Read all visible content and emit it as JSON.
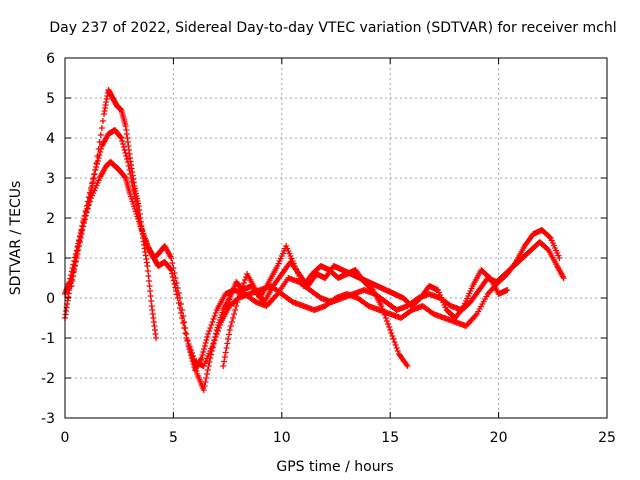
{
  "chart_data": {
    "type": "scatter",
    "title": "Day 237 of 2022, Sidereal Day-to-day VTEC variation (SDTVAR) for receiver mchl",
    "xlabel": "GPS time / hours",
    "ylabel": "SDTVAR / TECUs",
    "xlim": [
      0,
      25
    ],
    "ylim": [
      -3,
      6
    ],
    "xticks": [
      0,
      5,
      10,
      15,
      20,
      25
    ],
    "yticks": [
      -3,
      -2,
      -1,
      0,
      1,
      2,
      3,
      4,
      5,
      6
    ],
    "grid": true,
    "marker": "plus",
    "color": "#ff0000",
    "series": [
      {
        "name": "s1",
        "x": [
          0.0,
          0.2,
          0.5,
          0.8,
          1.2,
          1.6,
          1.9,
          2.1,
          2.3,
          2.5,
          2.8,
          3.0,
          3.3,
          3.6,
          3.9,
          4.1,
          4.3,
          4.6,
          4.9,
          5.3,
          5.7,
          6.0,
          6.3,
          6.6,
          7.0,
          7.4,
          7.8,
          8.3,
          8.8,
          9.3,
          9.8,
          10.3,
          10.8,
          11.3,
          11.8,
          12.3,
          12.8,
          13.3,
          13.8,
          14.3,
          14.8,
          15.3,
          15.8,
          16.3,
          16.8,
          17.3,
          17.8,
          18.3,
          18.7,
          19.1,
          19.5,
          19.9,
          20.3,
          20.7,
          21.1,
          21.5,
          21.9,
          22.3,
          22.7,
          23.0
        ],
        "y": [
          0.1,
          0.4,
          1.1,
          1.8,
          2.5,
          3.0,
          3.3,
          3.4,
          3.3,
          3.2,
          3.0,
          2.6,
          2.1,
          1.6,
          1.2,
          1.0,
          1.1,
          1.3,
          1.0,
          0.0,
          -1.2,
          -1.8,
          -1.5,
          -0.9,
          -0.3,
          0.1,
          0.2,
          0.1,
          -0.1,
          -0.2,
          0.1,
          0.5,
          0.4,
          0.2,
          0.0,
          -0.1,
          0.0,
          0.1,
          0.2,
          0.1,
          -0.1,
          -0.3,
          -0.2,
          0.0,
          0.1,
          0.0,
          -0.2,
          -0.3,
          -0.1,
          0.2,
          0.5,
          0.4,
          0.6,
          0.8,
          1.0,
          1.2,
          1.4,
          1.2,
          0.8,
          0.5
        ]
      },
      {
        "name": "s2",
        "x": [
          0.0,
          0.2,
          0.5,
          0.8,
          1.1,
          1.4,
          1.7,
          2.0,
          2.3,
          2.6,
          2.9,
          3.2,
          3.5,
          3.8,
          4.1,
          4.3,
          4.6,
          4.9,
          5.2,
          5.6,
          6.0,
          6.4,
          6.8,
          7.2,
          7.6,
          8.0,
          8.5,
          9.0,
          9.5,
          10.0,
          10.5,
          11.0,
          11.5,
          12.0,
          12.5,
          13.0,
          13.5,
          14.0,
          14.5,
          15.0,
          15.5,
          16.0,
          16.5,
          17.0,
          17.5,
          18.0,
          18.5,
          19.0,
          19.5,
          20.0,
          20.4,
          20.8,
          21.2,
          21.6,
          22.0,
          22.4,
          22.8
        ],
        "y": [
          -0.5,
          0.2,
          0.9,
          1.7,
          2.4,
          3.2,
          3.8,
          4.1,
          4.2,
          4.0,
          3.4,
          2.6,
          1.8,
          1.3,
          1.0,
          0.8,
          0.9,
          0.7,
          0.0,
          -1.0,
          -1.6,
          -1.7,
          -1.2,
          -0.6,
          -0.2,
          0.0,
          0.1,
          0.2,
          0.3,
          0.1,
          -0.1,
          -0.2,
          -0.3,
          -0.2,
          0.0,
          0.1,
          0.0,
          -0.2,
          -0.3,
          -0.4,
          -0.5,
          -0.3,
          -0.2,
          -0.4,
          -0.5,
          -0.6,
          -0.7,
          -0.4,
          0.1,
          0.4,
          0.6,
          0.9,
          1.3,
          1.6,
          1.7,
          1.5,
          1.0
        ]
      },
      {
        "name": "s3",
        "x": [
          0.3,
          0.6,
          1.0,
          1.4,
          1.8,
          2.0,
          2.2,
          2.4,
          2.6,
          2.8,
          3.0,
          3.2,
          3.4,
          3.6,
          3.8,
          4.0,
          4.2
        ],
        "y": [
          0.3,
          1.3,
          2.3,
          3.2,
          4.6,
          5.2,
          5.0,
          4.8,
          4.7,
          4.3,
          3.5,
          2.8,
          2.3,
          1.5,
          0.8,
          -0.2,
          -1.0
        ]
      },
      {
        "name": "s4",
        "x": [
          5.8,
          6.1,
          6.4,
          6.7,
          7.0,
          7.3,
          7.6,
          7.9,
          8.2,
          8.6,
          9.0,
          9.4,
          9.8,
          10.2,
          10.6,
          11.0,
          11.4,
          11.8,
          12.2,
          12.6,
          13.0,
          13.4,
          13.8,
          14.2,
          14.6,
          15.0,
          15.4,
          15.8
        ],
        "y": [
          -1.3,
          -1.9,
          -2.3,
          -1.5,
          -0.8,
          -0.3,
          0.0,
          0.4,
          0.2,
          0.3,
          0.0,
          0.4,
          0.8,
          1.3,
          0.8,
          0.3,
          0.6,
          0.8,
          0.7,
          0.5,
          0.6,
          0.7,
          0.4,
          0.2,
          -0.2,
          -0.8,
          -1.4,
          -1.7
        ]
      },
      {
        "name": "s5",
        "x": [
          7.3,
          7.6,
          8.0,
          8.4,
          8.8,
          9.2,
          9.6,
          10.0,
          10.4,
          10.8,
          11.2,
          11.6,
          12.0,
          12.4,
          12.8,
          13.2,
          13.6,
          14.0,
          14.4,
          14.8,
          15.2,
          15.6,
          16.0,
          16.4,
          16.8,
          17.2,
          17.6,
          18.0,
          18.4,
          18.8,
          19.2,
          19.6,
          20.0,
          20.4
        ],
        "y": [
          -1.7,
          -0.8,
          0.0,
          0.6,
          0.2,
          -0.1,
          0.3,
          0.6,
          0.9,
          0.6,
          0.3,
          0.6,
          0.5,
          0.8,
          0.7,
          0.6,
          0.5,
          0.4,
          0.3,
          0.2,
          0.1,
          0.0,
          -0.2,
          0.0,
          0.3,
          0.2,
          -0.3,
          -0.5,
          -0.2,
          0.3,
          0.7,
          0.5,
          0.1,
          0.2
        ]
      }
    ]
  }
}
